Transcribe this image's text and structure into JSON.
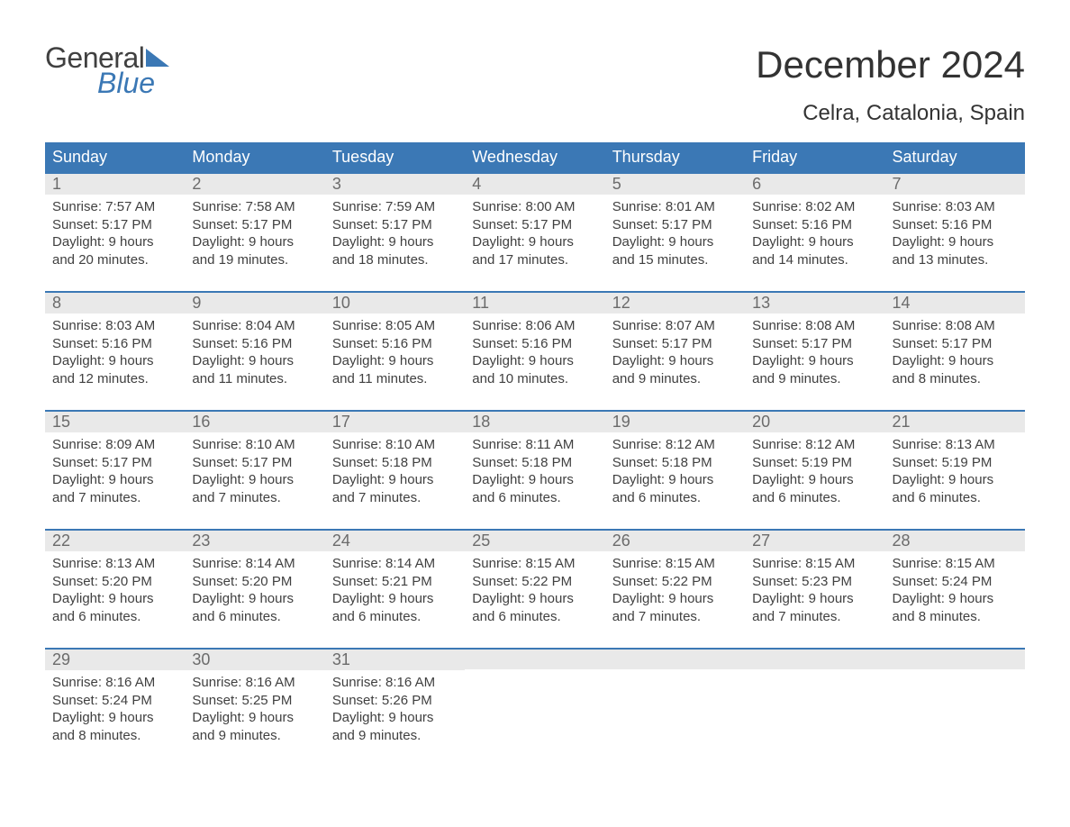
{
  "brand": {
    "word1": "General",
    "word2": "Blue"
  },
  "title": "December 2024",
  "location": "Celra, Catalonia, Spain",
  "colors": {
    "accent": "#3b78b5",
    "header_text": "#ffffff",
    "daynum_bg": "#e9e9e9",
    "daynum_text": "#6b6b6b",
    "body_text": "#404040",
    "background": "#ffffff"
  },
  "fonts": {
    "title_size_pt": 42,
    "location_size_pt": 24,
    "dayheader_size_pt": 18,
    "daynum_size_pt": 18,
    "body_size_pt": 15
  },
  "day_headers": [
    "Sunday",
    "Monday",
    "Tuesday",
    "Wednesday",
    "Thursday",
    "Friday",
    "Saturday"
  ],
  "weeks": [
    [
      {
        "n": "1",
        "sunrise": "Sunrise: 7:57 AM",
        "sunset": "Sunset: 5:17 PM",
        "d1": "Daylight: 9 hours",
        "d2": "and 20 minutes."
      },
      {
        "n": "2",
        "sunrise": "Sunrise: 7:58 AM",
        "sunset": "Sunset: 5:17 PM",
        "d1": "Daylight: 9 hours",
        "d2": "and 19 minutes."
      },
      {
        "n": "3",
        "sunrise": "Sunrise: 7:59 AM",
        "sunset": "Sunset: 5:17 PM",
        "d1": "Daylight: 9 hours",
        "d2": "and 18 minutes."
      },
      {
        "n": "4",
        "sunrise": "Sunrise: 8:00 AM",
        "sunset": "Sunset: 5:17 PM",
        "d1": "Daylight: 9 hours",
        "d2": "and 17 minutes."
      },
      {
        "n": "5",
        "sunrise": "Sunrise: 8:01 AM",
        "sunset": "Sunset: 5:17 PM",
        "d1": "Daylight: 9 hours",
        "d2": "and 15 minutes."
      },
      {
        "n": "6",
        "sunrise": "Sunrise: 8:02 AM",
        "sunset": "Sunset: 5:16 PM",
        "d1": "Daylight: 9 hours",
        "d2": "and 14 minutes."
      },
      {
        "n": "7",
        "sunrise": "Sunrise: 8:03 AM",
        "sunset": "Sunset: 5:16 PM",
        "d1": "Daylight: 9 hours",
        "d2": "and 13 minutes."
      }
    ],
    [
      {
        "n": "8",
        "sunrise": "Sunrise: 8:03 AM",
        "sunset": "Sunset: 5:16 PM",
        "d1": "Daylight: 9 hours",
        "d2": "and 12 minutes."
      },
      {
        "n": "9",
        "sunrise": "Sunrise: 8:04 AM",
        "sunset": "Sunset: 5:16 PM",
        "d1": "Daylight: 9 hours",
        "d2": "and 11 minutes."
      },
      {
        "n": "10",
        "sunrise": "Sunrise: 8:05 AM",
        "sunset": "Sunset: 5:16 PM",
        "d1": "Daylight: 9 hours",
        "d2": "and 11 minutes."
      },
      {
        "n": "11",
        "sunrise": "Sunrise: 8:06 AM",
        "sunset": "Sunset: 5:16 PM",
        "d1": "Daylight: 9 hours",
        "d2": "and 10 minutes."
      },
      {
        "n": "12",
        "sunrise": "Sunrise: 8:07 AM",
        "sunset": "Sunset: 5:17 PM",
        "d1": "Daylight: 9 hours",
        "d2": "and 9 minutes."
      },
      {
        "n": "13",
        "sunrise": "Sunrise: 8:08 AM",
        "sunset": "Sunset: 5:17 PM",
        "d1": "Daylight: 9 hours",
        "d2": "and 9 minutes."
      },
      {
        "n": "14",
        "sunrise": "Sunrise: 8:08 AM",
        "sunset": "Sunset: 5:17 PM",
        "d1": "Daylight: 9 hours",
        "d2": "and 8 minutes."
      }
    ],
    [
      {
        "n": "15",
        "sunrise": "Sunrise: 8:09 AM",
        "sunset": "Sunset: 5:17 PM",
        "d1": "Daylight: 9 hours",
        "d2": "and 7 minutes."
      },
      {
        "n": "16",
        "sunrise": "Sunrise: 8:10 AM",
        "sunset": "Sunset: 5:17 PM",
        "d1": "Daylight: 9 hours",
        "d2": "and 7 minutes."
      },
      {
        "n": "17",
        "sunrise": "Sunrise: 8:10 AM",
        "sunset": "Sunset: 5:18 PM",
        "d1": "Daylight: 9 hours",
        "d2": "and 7 minutes."
      },
      {
        "n": "18",
        "sunrise": "Sunrise: 8:11 AM",
        "sunset": "Sunset: 5:18 PM",
        "d1": "Daylight: 9 hours",
        "d2": "and 6 minutes."
      },
      {
        "n": "19",
        "sunrise": "Sunrise: 8:12 AM",
        "sunset": "Sunset: 5:18 PM",
        "d1": "Daylight: 9 hours",
        "d2": "and 6 minutes."
      },
      {
        "n": "20",
        "sunrise": "Sunrise: 8:12 AM",
        "sunset": "Sunset: 5:19 PM",
        "d1": "Daylight: 9 hours",
        "d2": "and 6 minutes."
      },
      {
        "n": "21",
        "sunrise": "Sunrise: 8:13 AM",
        "sunset": "Sunset: 5:19 PM",
        "d1": "Daylight: 9 hours",
        "d2": "and 6 minutes."
      }
    ],
    [
      {
        "n": "22",
        "sunrise": "Sunrise: 8:13 AM",
        "sunset": "Sunset: 5:20 PM",
        "d1": "Daylight: 9 hours",
        "d2": "and 6 minutes."
      },
      {
        "n": "23",
        "sunrise": "Sunrise: 8:14 AM",
        "sunset": "Sunset: 5:20 PM",
        "d1": "Daylight: 9 hours",
        "d2": "and 6 minutes."
      },
      {
        "n": "24",
        "sunrise": "Sunrise: 8:14 AM",
        "sunset": "Sunset: 5:21 PM",
        "d1": "Daylight: 9 hours",
        "d2": "and 6 minutes."
      },
      {
        "n": "25",
        "sunrise": "Sunrise: 8:15 AM",
        "sunset": "Sunset: 5:22 PM",
        "d1": "Daylight: 9 hours",
        "d2": "and 6 minutes."
      },
      {
        "n": "26",
        "sunrise": "Sunrise: 8:15 AM",
        "sunset": "Sunset: 5:22 PM",
        "d1": "Daylight: 9 hours",
        "d2": "and 7 minutes."
      },
      {
        "n": "27",
        "sunrise": "Sunrise: 8:15 AM",
        "sunset": "Sunset: 5:23 PM",
        "d1": "Daylight: 9 hours",
        "d2": "and 7 minutes."
      },
      {
        "n": "28",
        "sunrise": "Sunrise: 8:15 AM",
        "sunset": "Sunset: 5:24 PM",
        "d1": "Daylight: 9 hours",
        "d2": "and 8 minutes."
      }
    ],
    [
      {
        "n": "29",
        "sunrise": "Sunrise: 8:16 AM",
        "sunset": "Sunset: 5:24 PM",
        "d1": "Daylight: 9 hours",
        "d2": "and 8 minutes."
      },
      {
        "n": "30",
        "sunrise": "Sunrise: 8:16 AM",
        "sunset": "Sunset: 5:25 PM",
        "d1": "Daylight: 9 hours",
        "d2": "and 9 minutes."
      },
      {
        "n": "31",
        "sunrise": "Sunrise: 8:16 AM",
        "sunset": "Sunset: 5:26 PM",
        "d1": "Daylight: 9 hours",
        "d2": "and 9 minutes."
      },
      null,
      null,
      null,
      null
    ]
  ]
}
